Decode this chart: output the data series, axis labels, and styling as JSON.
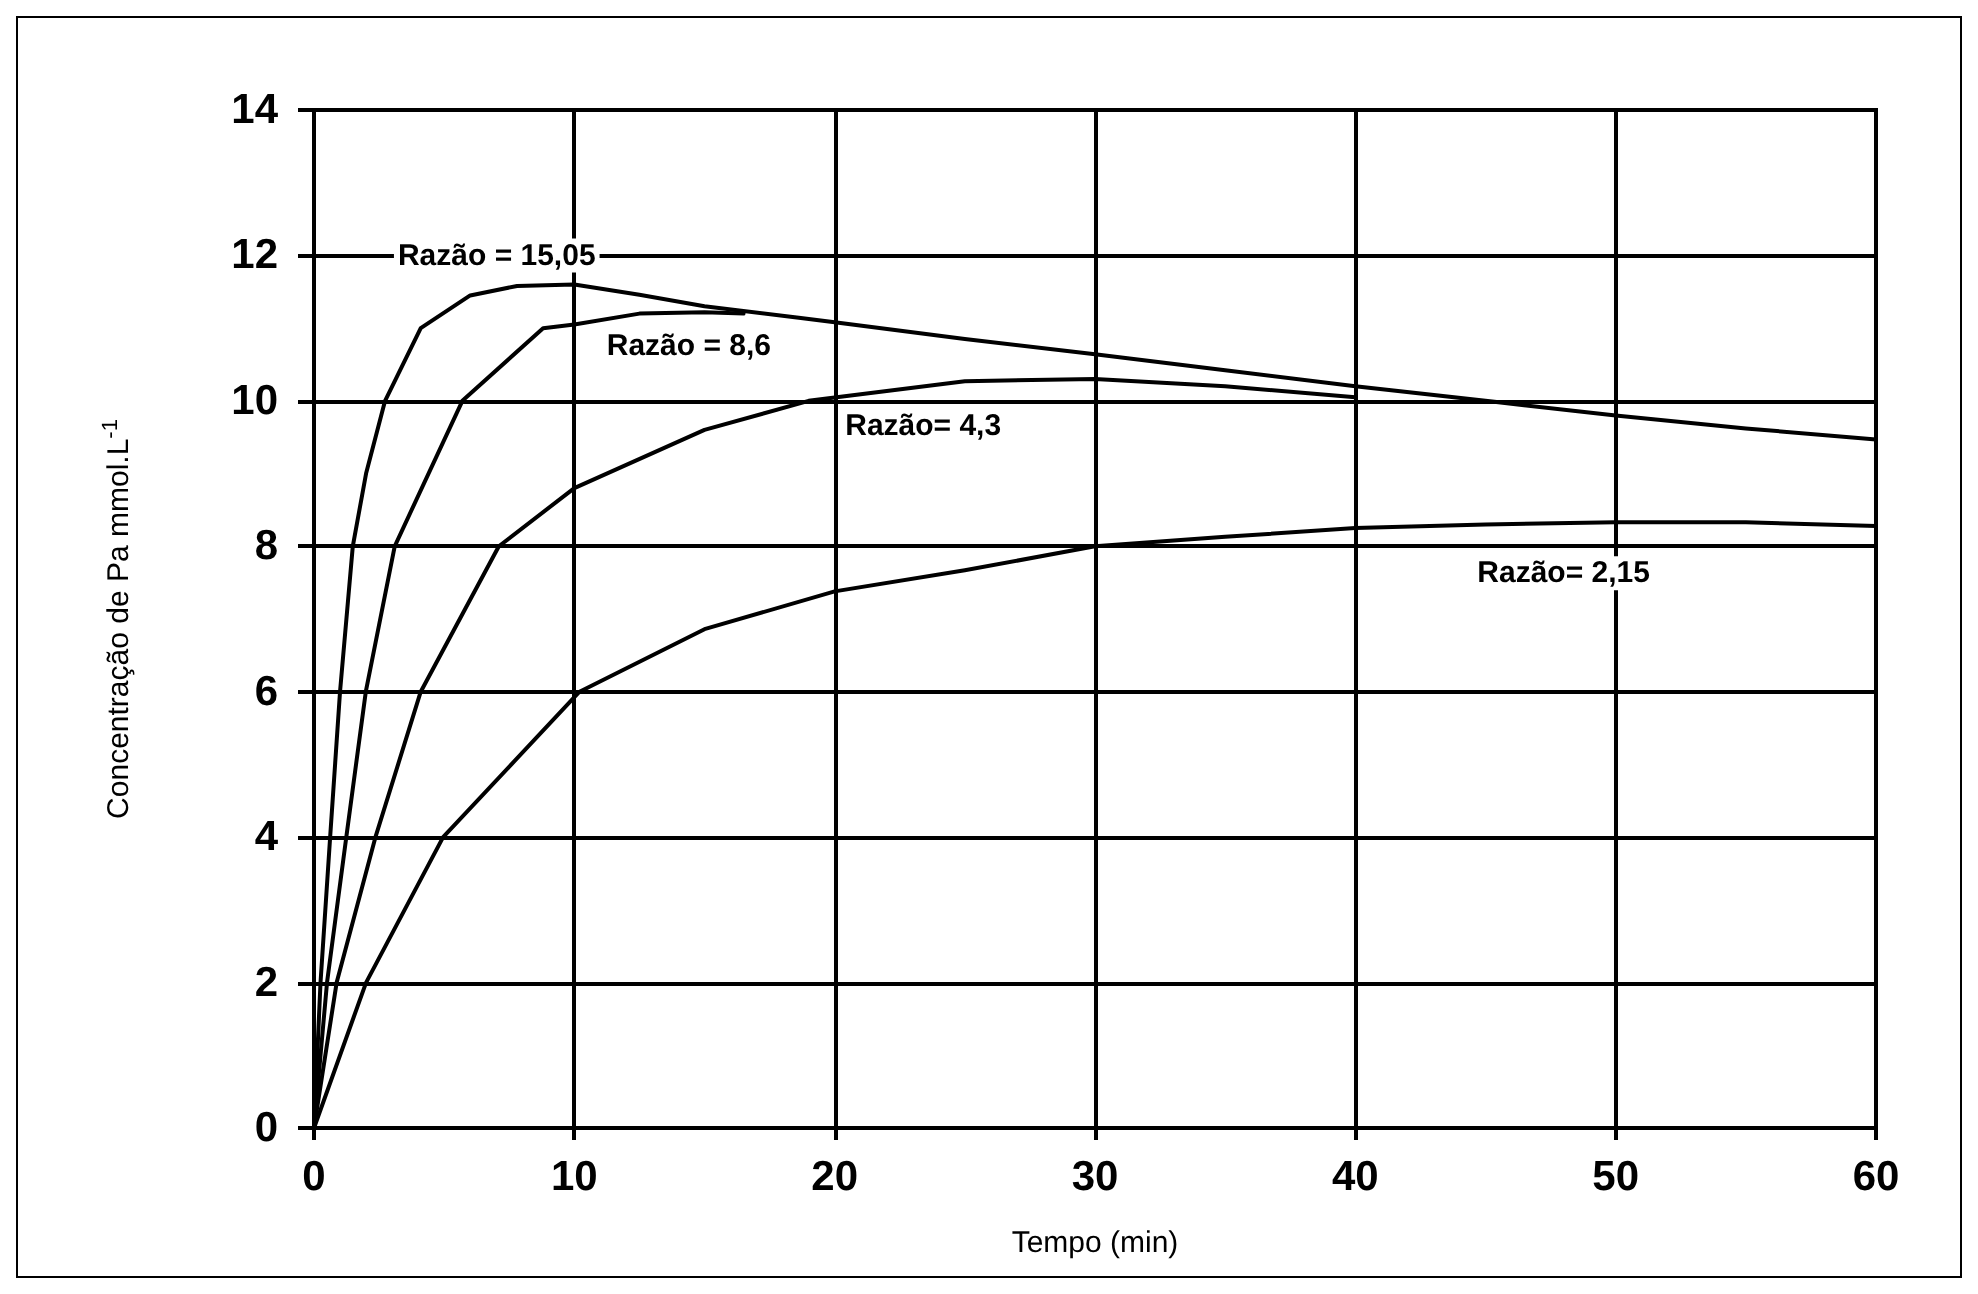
{
  "chart_data": {
    "type": "line",
    "xlabel": "Tempo (min)",
    "ylabel": "Concentração de Pa mmol.L$^{-1}$",
    "x": [
      0,
      0.25,
      0.62,
      1.0,
      1.49,
      2.0,
      2.73,
      4.1,
      6.0,
      7.8,
      10,
      12.5,
      15,
      18.7,
      20,
      25,
      30,
      35,
      40,
      45,
      50,
      55,
      60
    ],
    "series": [
      {
        "name": "Razão = 15,05",
        "color": "#000000",
        "values": [
          0,
          2,
          4,
          6,
          8,
          9,
          10,
          11,
          11.45,
          11.58,
          11.6,
          11.46,
          11.3,
          11.14,
          11.08,
          10.85,
          10.64,
          10.42,
          10.2,
          10.0,
          9.8,
          9.62,
          9.47
        ]
      },
      {
        "name": "Razão = 8,6",
        "color": "#000000",
        "x": [
          0,
          0.5,
          1.24,
          1.99,
          3.1,
          5.7,
          8.8,
          10,
          12.5,
          15,
          16.5
        ],
        "values": [
          0,
          2,
          4,
          6,
          8,
          10,
          11,
          11.05,
          11.2,
          11.22,
          11.2
        ]
      },
      {
        "name": "Razão= 4,3",
        "color": "#000000",
        "x": [
          0,
          0.87,
          2.36,
          4.1,
          7.1,
          10,
          15,
          19.0,
          25,
          30,
          35,
          40
        ],
        "values": [
          0,
          2,
          4,
          6,
          8,
          8.8,
          9.6,
          10,
          10.27,
          10.3,
          10.2,
          10.05
        ]
      },
      {
        "name": "Razão= 2,15",
        "color": "#000000",
        "x": [
          0,
          2.0,
          4.96,
          10.2,
          15,
          20,
          25,
          30,
          35,
          40,
          45,
          50,
          55,
          60
        ],
        "values": [
          0,
          2,
          4,
          6,
          6.86,
          7.38,
          7.67,
          8.0,
          8.13,
          8.25,
          8.3,
          8.33,
          8.33,
          8.28
        ]
      }
    ],
    "xlim": [
      0,
      60
    ],
    "xticks": [
      0,
      10,
      20,
      30,
      40,
      50,
      60
    ],
    "ylim": [
      0,
      14
    ],
    "yticks": [
      0,
      2,
      4,
      6,
      8,
      10,
      12,
      14
    ],
    "grid": true,
    "marker": "none",
    "line_style": "solid"
  }
}
